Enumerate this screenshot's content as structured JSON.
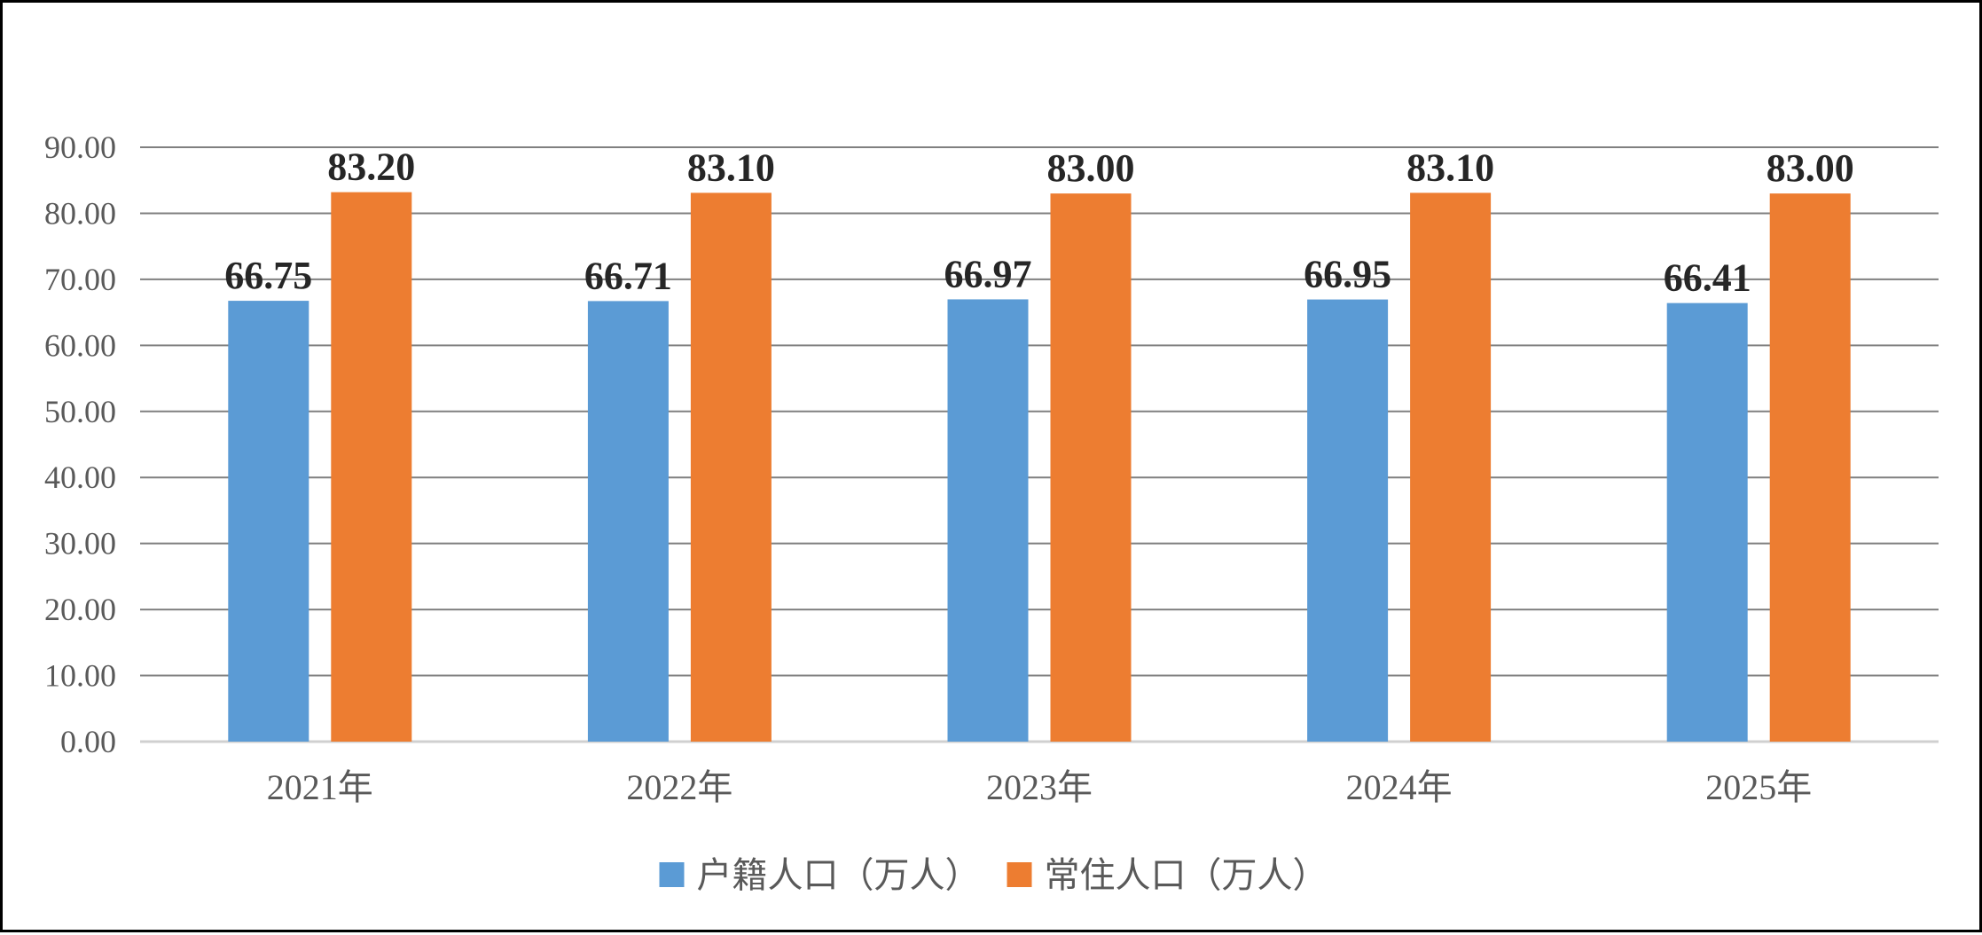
{
  "chart_data": {
    "type": "bar",
    "categories": [
      "2021年",
      "2022年",
      "2023年",
      "2024年",
      "2025年"
    ],
    "series": [
      {
        "name": "户籍人口（万人）",
        "color": "#5B9BD5",
        "values": [
          66.75,
          66.71,
          66.97,
          66.95,
          66.41
        ]
      },
      {
        "name": "常住人口（万人）",
        "color": "#ED7D31",
        "values": [
          83.2,
          83.1,
          83.0,
          83.1,
          83.0
        ]
      }
    ],
    "y_ticks": [
      "0.00",
      "10.00",
      "20.00",
      "30.00",
      "40.00",
      "50.00",
      "60.00",
      "70.00",
      "80.00",
      "90.00"
    ],
    "ylim": [
      0,
      90
    ],
    "grid": true,
    "legend_position": "bottom",
    "gridline_color": "#808080"
  }
}
